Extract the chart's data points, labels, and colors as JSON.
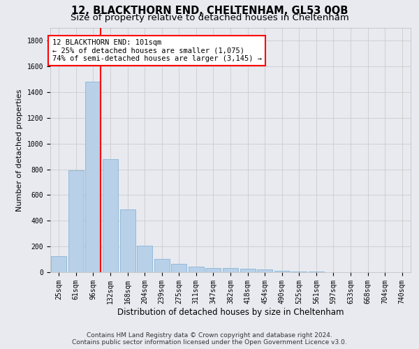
{
  "title": "12, BLACKTHORN END, CHELTENHAM, GL53 0QB",
  "subtitle": "Size of property relative to detached houses in Cheltenham",
  "xlabel": "Distribution of detached houses by size in Cheltenham",
  "ylabel": "Number of detached properties",
  "categories": [
    "25sqm",
    "61sqm",
    "96sqm",
    "132sqm",
    "168sqm",
    "204sqm",
    "239sqm",
    "275sqm",
    "311sqm",
    "347sqm",
    "382sqm",
    "418sqm",
    "454sqm",
    "490sqm",
    "525sqm",
    "561sqm",
    "597sqm",
    "633sqm",
    "668sqm",
    "704sqm",
    "740sqm"
  ],
  "values": [
    125,
    795,
    1480,
    880,
    490,
    205,
    105,
    65,
    45,
    35,
    30,
    25,
    20,
    10,
    5,
    3,
    2,
    1,
    1,
    1,
    1
  ],
  "bar_color": "#b8d0e8",
  "bar_edge_color": "#7aafd4",
  "vline_color": "red",
  "vline_linewidth": 1.5,
  "vline_x": 2.43,
  "annotation_text_line1": "12 BLACKTHORN END: 101sqm",
  "annotation_text_line2": "← 25% of detached houses are smaller (1,075)",
  "annotation_text_line3": "74% of semi-detached houses are larger (3,145) →",
  "annotation_box_color": "red",
  "annotation_box_facecolor": "white",
  "ylim": [
    0,
    1900
  ],
  "yticks": [
    0,
    200,
    400,
    600,
    800,
    1000,
    1200,
    1400,
    1600,
    1800
  ],
  "grid_color": "#cccccc",
  "background_color": "#e8eaf0",
  "footer_line1": "Contains HM Land Registry data © Crown copyright and database right 2024.",
  "footer_line2": "Contains public sector information licensed under the Open Government Licence v3.0.",
  "title_fontsize": 10.5,
  "subtitle_fontsize": 9.5,
  "xlabel_fontsize": 8.5,
  "ylabel_fontsize": 8,
  "tick_fontsize": 7,
  "annotation_fontsize": 7.5,
  "footer_fontsize": 6.5,
  "fig_width": 6.0,
  "fig_height": 5.0,
  "fig_dpi": 100
}
